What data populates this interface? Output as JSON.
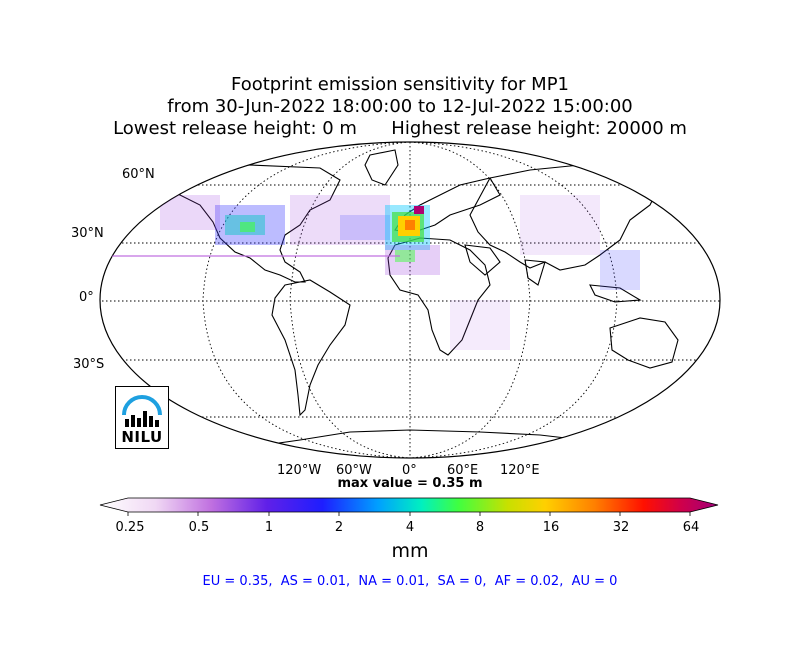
{
  "title": {
    "line1": "Footprint emission sensitivity for MP1",
    "line2": "from 30-Jun-2022 18:00:00 to 12-Jul-2022 15:00:00",
    "line3": "Lowest release height: 0 m      Highest release height: 20000 m"
  },
  "map": {
    "projection": "Robinson",
    "lat_labels": [
      "60°N",
      "30°N",
      "0°",
      "30°S"
    ],
    "lon_labels": [
      "120°W",
      "60°W",
      "0°",
      "60°E",
      "120°E"
    ],
    "max_value_text": "max value = 0.35 m",
    "logo_text": "NILU"
  },
  "colorbar": {
    "ticks": [
      "0.25",
      "0.5",
      "1",
      "2",
      "4",
      "8",
      "16",
      "32",
      "64"
    ],
    "unit": "mm",
    "colors": [
      "#ffffff",
      "#e8b4f0",
      "#9c3ee0",
      "#1e1eff",
      "#00c8ff",
      "#00ff90",
      "#98e000",
      "#ffd000",
      "#ff7000",
      "#ff0000",
      "#b00070"
    ]
  },
  "summary": "EU = 0.35,  AS = 0.01,  NA = 0.01,  SA = 0,  AF = 0.02,  AU = 0"
}
